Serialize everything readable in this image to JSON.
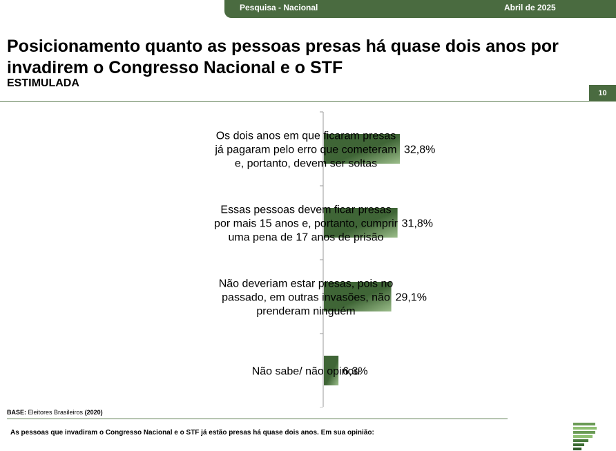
{
  "header": {
    "survey": "Pesquisa - Nacional",
    "date": "Abril de 2025"
  },
  "title": "Posicionamento quanto as pessoas presas há quase dois anos por invadirem o Congresso Nacional e o STF",
  "subtitle": "ESTIMULADA",
  "page_number": "10",
  "footer": {
    "base_label": "BASE:",
    "base_text": "Eleitores Brasileiros",
    "base_n": "(2020)",
    "question": "As pessoas que invadiram o Congresso Nacional e o STF já estão presas há quase dois anos. Em sua opinião:"
  },
  "colors": {
    "accent": "#4a6b40",
    "bar_dark": "#3f6536",
    "bar_light": "#8fb27f"
  },
  "chart_data": {
    "type": "bar",
    "orientation": "horizontal",
    "categories": [
      [
        "Os dois anos em que ficaram presas",
        "já pagaram pelo erro que cometeram",
        "e, portanto, devem ser soltas"
      ],
      [
        "Essas pessoas devem ficar presas",
        "por mais 15 anos e, portanto, cumprir",
        "uma pena de 17 anos de prisão"
      ],
      [
        "Não deveriam estar presas, pois no",
        "passado, em outras invasões, não",
        "prenderam ninguém"
      ],
      [
        "Não sabe/ não opinou"
      ]
    ],
    "values": [
      32.8,
      31.8,
      29.1,
      6.3
    ],
    "value_labels": [
      "32,8%",
      "31,8%",
      "29,1%",
      "6,3%"
    ],
    "unit": "%",
    "xlim": [
      0,
      100
    ],
    "grid": false
  }
}
